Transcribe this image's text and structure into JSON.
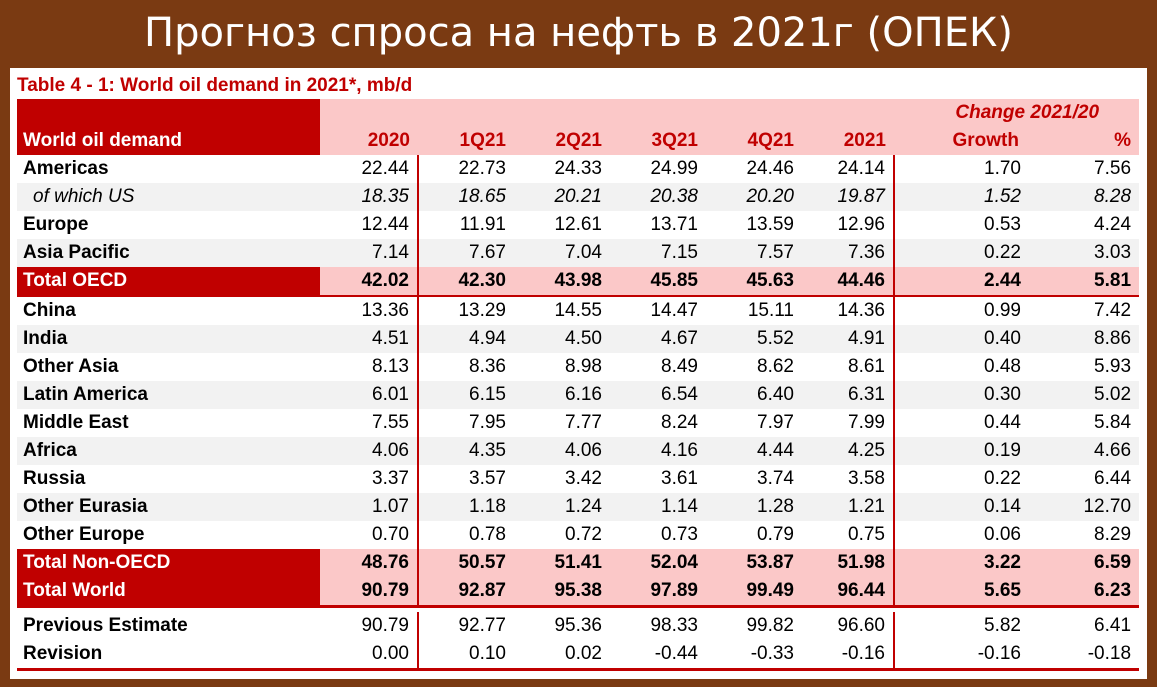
{
  "banner_title": "Прогноз спроса на нефть в 2021г (ОПЕК)",
  "table_caption": "Table 4 - 1: World oil demand in 2021*, mb/d",
  "change_header": "Change 2021/20",
  "columns": {
    "label": "World oil demand",
    "c2020": "2020",
    "q1": "1Q21",
    "q2": "2Q21",
    "q3": "3Q21",
    "q4": "4Q21",
    "c2021": "2021",
    "growth": "Growth",
    "pct": "%"
  },
  "rows": [
    {
      "label": "Americas",
      "v": [
        "22.44",
        "22.73",
        "24.33",
        "24.99",
        "24.46",
        "24.14",
        "1.70",
        "7.56"
      ]
    },
    {
      "label": "of which US",
      "v": [
        "18.35",
        "18.65",
        "20.21",
        "20.38",
        "20.20",
        "19.87",
        "1.52",
        "8.28"
      ]
    },
    {
      "label": "Europe",
      "v": [
        "12.44",
        "11.91",
        "12.61",
        "13.71",
        "13.59",
        "12.96",
        "0.53",
        "4.24"
      ]
    },
    {
      "label": "Asia Pacific",
      "v": [
        "7.14",
        "7.67",
        "7.04",
        "7.15",
        "7.57",
        "7.36",
        "0.22",
        "3.03"
      ]
    },
    {
      "label": "Total OECD",
      "v": [
        "42.02",
        "42.30",
        "43.98",
        "45.85",
        "45.63",
        "44.46",
        "2.44",
        "5.81"
      ]
    },
    {
      "label": "China",
      "v": [
        "13.36",
        "13.29",
        "14.55",
        "14.47",
        "15.11",
        "14.36",
        "0.99",
        "7.42"
      ]
    },
    {
      "label": "India",
      "v": [
        "4.51",
        "4.94",
        "4.50",
        "4.67",
        "5.52",
        "4.91",
        "0.40",
        "8.86"
      ]
    },
    {
      "label": "Other Asia",
      "v": [
        "8.13",
        "8.36",
        "8.98",
        "8.49",
        "8.62",
        "8.61",
        "0.48",
        "5.93"
      ]
    },
    {
      "label": "Latin America",
      "v": [
        "6.01",
        "6.15",
        "6.16",
        "6.54",
        "6.40",
        "6.31",
        "0.30",
        "5.02"
      ]
    },
    {
      "label": "Middle East",
      "v": [
        "7.55",
        "7.95",
        "7.77",
        "8.24",
        "7.97",
        "7.99",
        "0.44",
        "5.84"
      ]
    },
    {
      "label": "Africa",
      "v": [
        "4.06",
        "4.35",
        "4.06",
        "4.16",
        "4.44",
        "4.25",
        "0.19",
        "4.66"
      ]
    },
    {
      "label": "Russia",
      "v": [
        "3.37",
        "3.57",
        "3.42",
        "3.61",
        "3.74",
        "3.58",
        "0.22",
        "6.44"
      ]
    },
    {
      "label": "Other Eurasia",
      "v": [
        "1.07",
        "1.18",
        "1.24",
        "1.14",
        "1.28",
        "1.21",
        "0.14",
        "12.70"
      ]
    },
    {
      "label": "Other Europe",
      "v": [
        "0.70",
        "0.78",
        "0.72",
        "0.73",
        "0.79",
        "0.75",
        "0.06",
        "8.29"
      ]
    },
    {
      "label": "Total Non-OECD",
      "v": [
        "48.76",
        "50.57",
        "51.41",
        "52.04",
        "53.87",
        "51.98",
        "3.22",
        "6.59"
      ]
    },
    {
      "label": "Total World",
      "v": [
        "90.79",
        "92.87",
        "95.38",
        "97.89",
        "99.49",
        "96.44",
        "5.65",
        "6.23"
      ]
    },
    {
      "label": "Previous Estimate",
      "v": [
        "90.79",
        "92.77",
        "95.36",
        "98.33",
        "99.82",
        "96.60",
        "5.82",
        "6.41"
      ]
    },
    {
      "label": "Revision",
      "v": [
        "0.00",
        "0.10",
        "0.02",
        "-0.44",
        "-0.33",
        "-0.16",
        "-0.16",
        "-0.18"
      ]
    }
  ],
  "colors": {
    "accent_red": "#c00000",
    "header_pink": "#fbc8c8",
    "banner_brown": "#7a3a12"
  }
}
